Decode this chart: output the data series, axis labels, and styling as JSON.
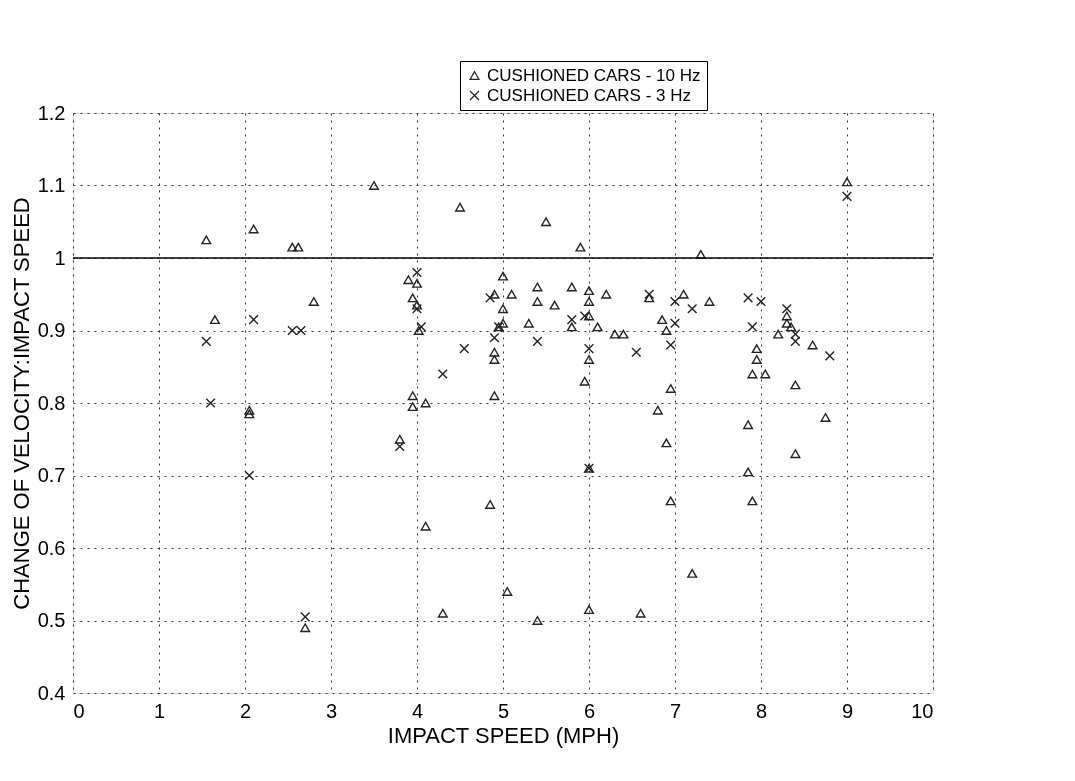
{
  "chart_data": {
    "type": "scatter",
    "xlabel": "IMPACT SPEED (MPH)",
    "ylabel": "CHANGE OF VELOCITY:IMPACT SPEED",
    "xlim": [
      0,
      10
    ],
    "xticks": [
      0,
      1,
      2,
      3,
      4,
      5,
      6,
      7,
      8,
      9,
      10
    ],
    "ylim": [
      0.4,
      1.2
    ],
    "yticks": [
      0.4,
      0.5,
      0.6,
      0.7,
      0.8,
      0.9,
      1,
      1.1,
      1.2
    ],
    "grid": true,
    "legend": "top right",
    "ref_lines": [
      {
        "axis": "y",
        "value": 1,
        "color": "#000000",
        "line_style": "solid"
      }
    ],
    "series": [
      {
        "name": "CUSHIONED CARS - 10 Hz",
        "color": "#222222",
        "marker": "triangle",
        "x": [
          1.55,
          1.65,
          2.05,
          2.05,
          2.1,
          2.55,
          2.62,
          2.8,
          2.7,
          3.5,
          3.8,
          3.9,
          3.95,
          4.0,
          4.0,
          4.02,
          3.95,
          3.95,
          4.1,
          4.1,
          4.3,
          4.5,
          4.85,
          4.9,
          4.9,
          4.9,
          4.9,
          5.0,
          5.0,
          5.0,
          4.95,
          5.05,
          5.1,
          5.3,
          5.4,
          5.4,
          5.4,
          5.5,
          5.6,
          5.8,
          5.8,
          5.9,
          6.0,
          6.0,
          6.0,
          6.0,
          5.95,
          6.0,
          6.0,
          6.1,
          6.2,
          6.3,
          6.4,
          6.6,
          6.7,
          6.85,
          6.8,
          6.9,
          6.9,
          6.95,
          6.95,
          7.1,
          7.2,
          7.3,
          7.4,
          7.85,
          7.85,
          7.9,
          7.9,
          7.95,
          7.95,
          8.05,
          8.2,
          8.3,
          8.3,
          8.35,
          8.4,
          8.4,
          8.6,
          8.75,
          9.0
        ],
        "values": [
          1.025,
          0.915,
          0.79,
          0.785,
          1.04,
          1.015,
          1.015,
          0.94,
          0.49,
          1.1,
          0.75,
          0.97,
          0.945,
          0.935,
          0.965,
          0.9,
          0.81,
          0.795,
          0.8,
          0.63,
          0.51,
          1.07,
          0.66,
          0.95,
          0.87,
          0.86,
          0.81,
          0.975,
          0.93,
          0.91,
          0.905,
          0.54,
          0.95,
          0.91,
          0.96,
          0.94,
          0.5,
          1.05,
          0.935,
          0.96,
          0.905,
          1.015,
          0.955,
          0.94,
          0.92,
          0.86,
          0.83,
          0.71,
          0.515,
          0.905,
          0.95,
          0.895,
          0.895,
          0.51,
          0.945,
          0.915,
          0.79,
          0.745,
          0.9,
          0.82,
          0.665,
          0.95,
          0.565,
          1.005,
          0.94,
          0.77,
          0.705,
          0.84,
          0.665,
          0.875,
          0.86,
          0.84,
          0.895,
          0.92,
          0.91,
          0.905,
          0.825,
          0.73,
          0.88,
          0.78,
          1.105
        ]
      },
      {
        "name": "CUSHIONED CARS - 3 Hz",
        "color": "#222222",
        "marker": "cross",
        "x": [
          1.55,
          1.6,
          2.1,
          2.05,
          2.55,
          2.65,
          2.7,
          3.8,
          4.0,
          4.0,
          4.3,
          4.55,
          4.9,
          4.95,
          5.4,
          5.8,
          5.95,
          6.0,
          6.55,
          6.7,
          6.95,
          7.0,
          7.0,
          7.2,
          7.85,
          7.9,
          8.0,
          8.3,
          8.4,
          8.4,
          8.8,
          9.0,
          4.05,
          4.85,
          6.0
        ],
        "values": [
          0.885,
          0.8,
          0.915,
          0.7,
          0.9,
          0.9,
          0.505,
          0.74,
          0.98,
          0.93,
          0.84,
          0.875,
          0.89,
          0.905,
          0.885,
          0.915,
          0.92,
          0.875,
          0.87,
          0.95,
          0.88,
          0.94,
          0.91,
          0.93,
          0.945,
          0.905,
          0.94,
          0.93,
          0.885,
          0.895,
          0.865,
          1.085,
          0.905,
          0.945,
          0.71
        ]
      }
    ]
  }
}
